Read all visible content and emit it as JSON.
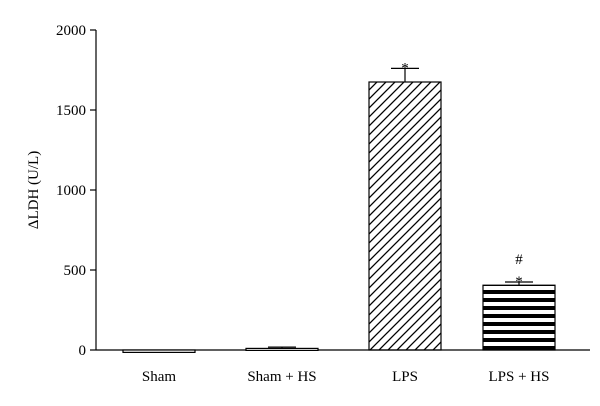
{
  "chart_data": {
    "type": "bar",
    "title": "",
    "xlabel": "",
    "ylabel": "ΔLDH (U/L)",
    "ylim": [
      0,
      2000
    ],
    "yticks": [
      0,
      500,
      1000,
      1500,
      2000
    ],
    "grid": false,
    "categories": [
      "Sham",
      "Sham + HS",
      "LPS",
      "LPS + HS"
    ],
    "values": [
      -15,
      10,
      1675,
      405
    ],
    "error": [
      0,
      8,
      85,
      20
    ],
    "fill_patterns": [
      "none",
      "none",
      "diagonal-hatch",
      "horizontal-stripes"
    ],
    "annotations": [
      {
        "category": "LPS",
        "text": "*"
      },
      {
        "category": "LPS + HS",
        "text": "#"
      },
      {
        "category": "LPS + HS",
        "text": "*"
      }
    ],
    "colors": {
      "stroke": "#000000",
      "fill": "#ffffff"
    }
  }
}
